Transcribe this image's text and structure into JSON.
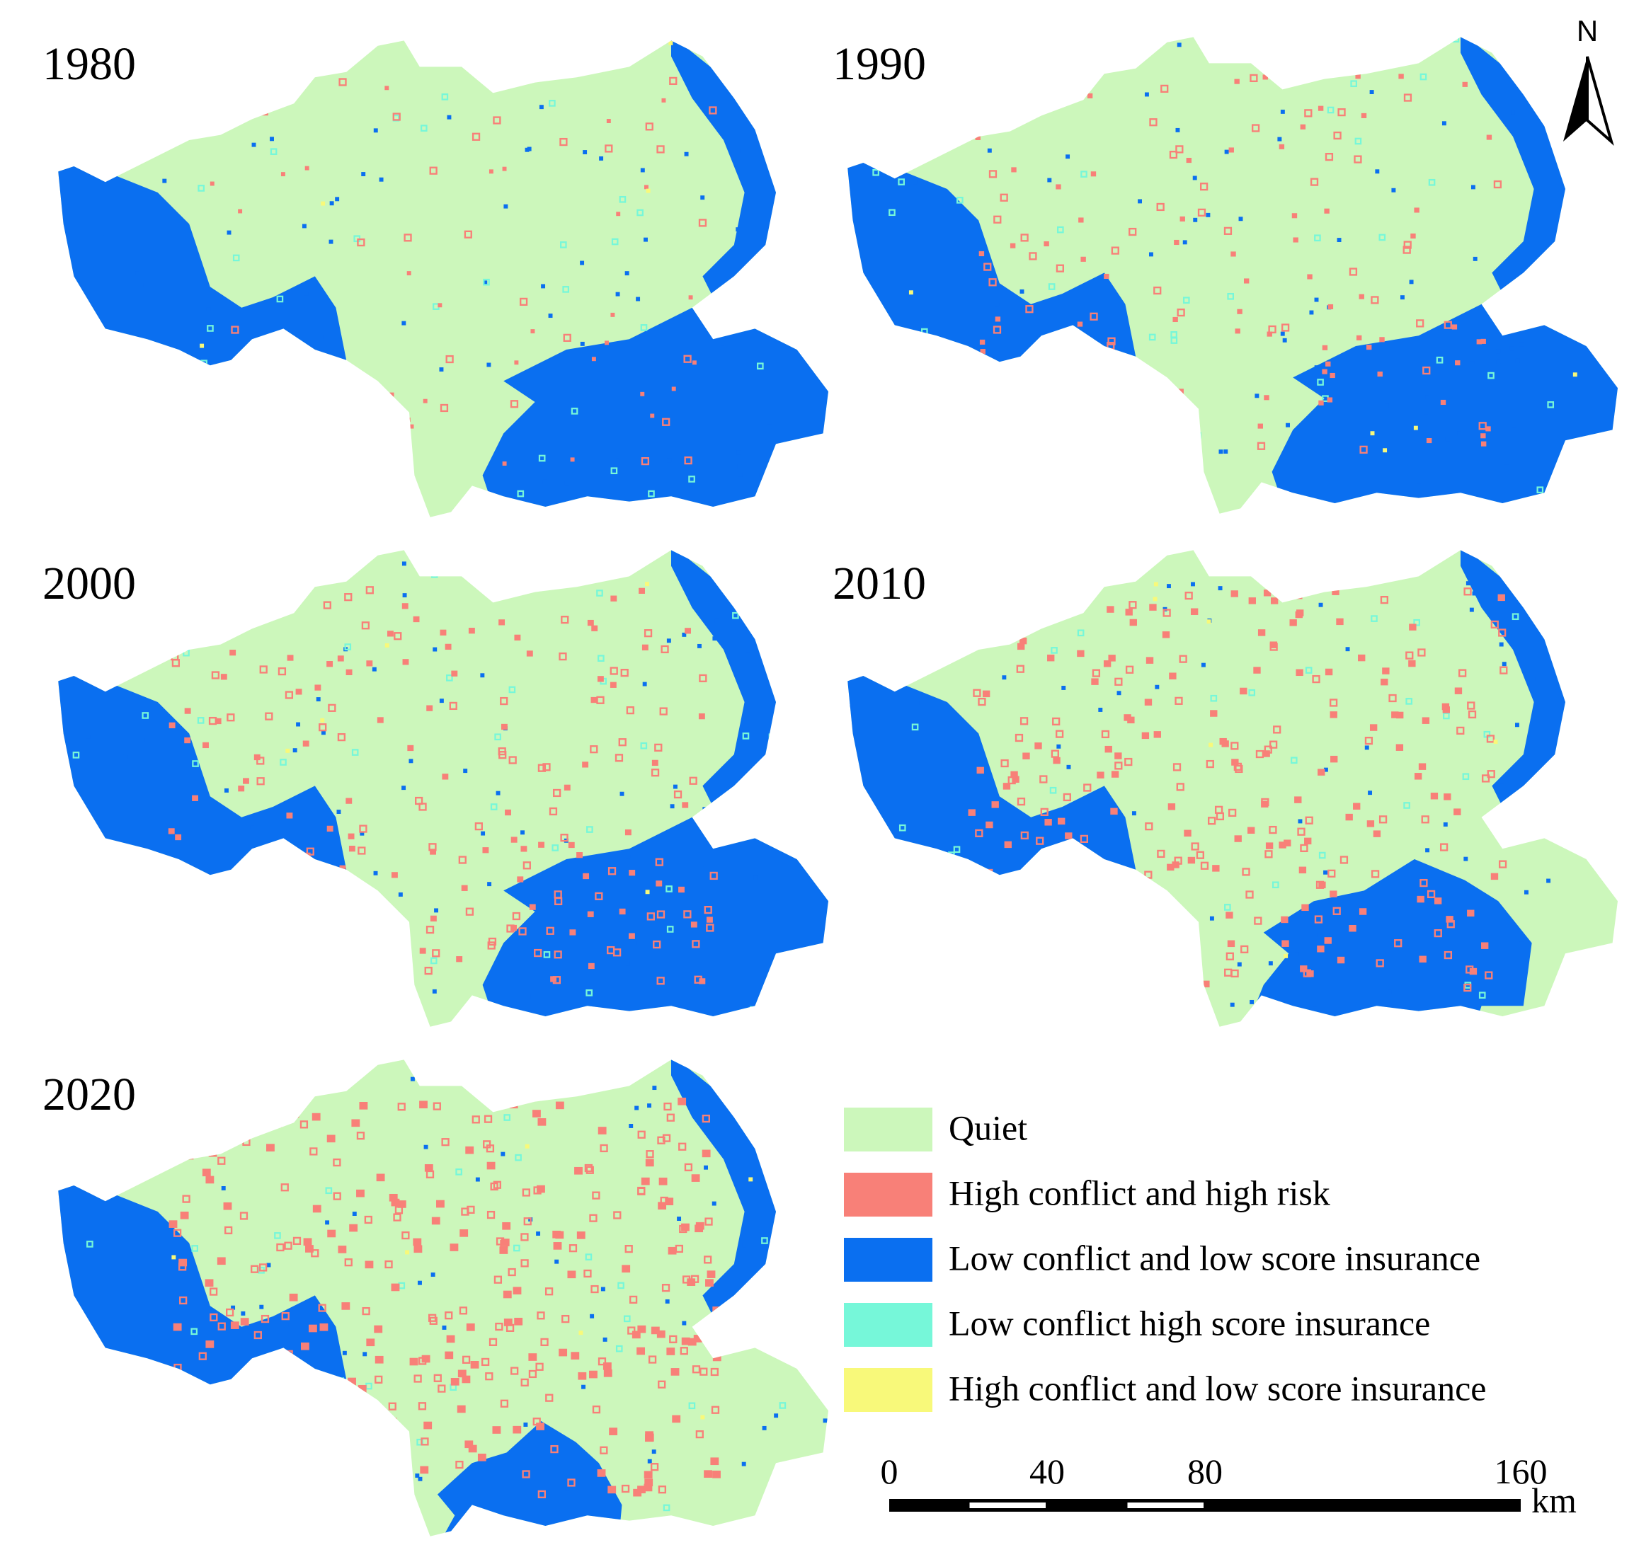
{
  "north": "N",
  "panels": [
    {
      "label": "1980"
    },
    {
      "label": "1990"
    },
    {
      "label": "2000"
    },
    {
      "label": "2010"
    },
    {
      "label": "2020"
    }
  ],
  "legend": {
    "items": [
      {
        "label": "Quiet",
        "color": "#ccf7bb"
      },
      {
        "label": "High conflict and high risk",
        "color": "#f88078"
      },
      {
        "label": "Low conflict and low score insurance",
        "color": "#0a6ff0"
      },
      {
        "label": "Low conflict high score insurance",
        "color": "#76f7d9"
      },
      {
        "label": "High conflict and low score insurance",
        "color": "#f8f97a"
      }
    ]
  },
  "scale_bar": {
    "ticks": [
      0,
      40,
      80,
      160
    ],
    "unit": "km"
  }
}
